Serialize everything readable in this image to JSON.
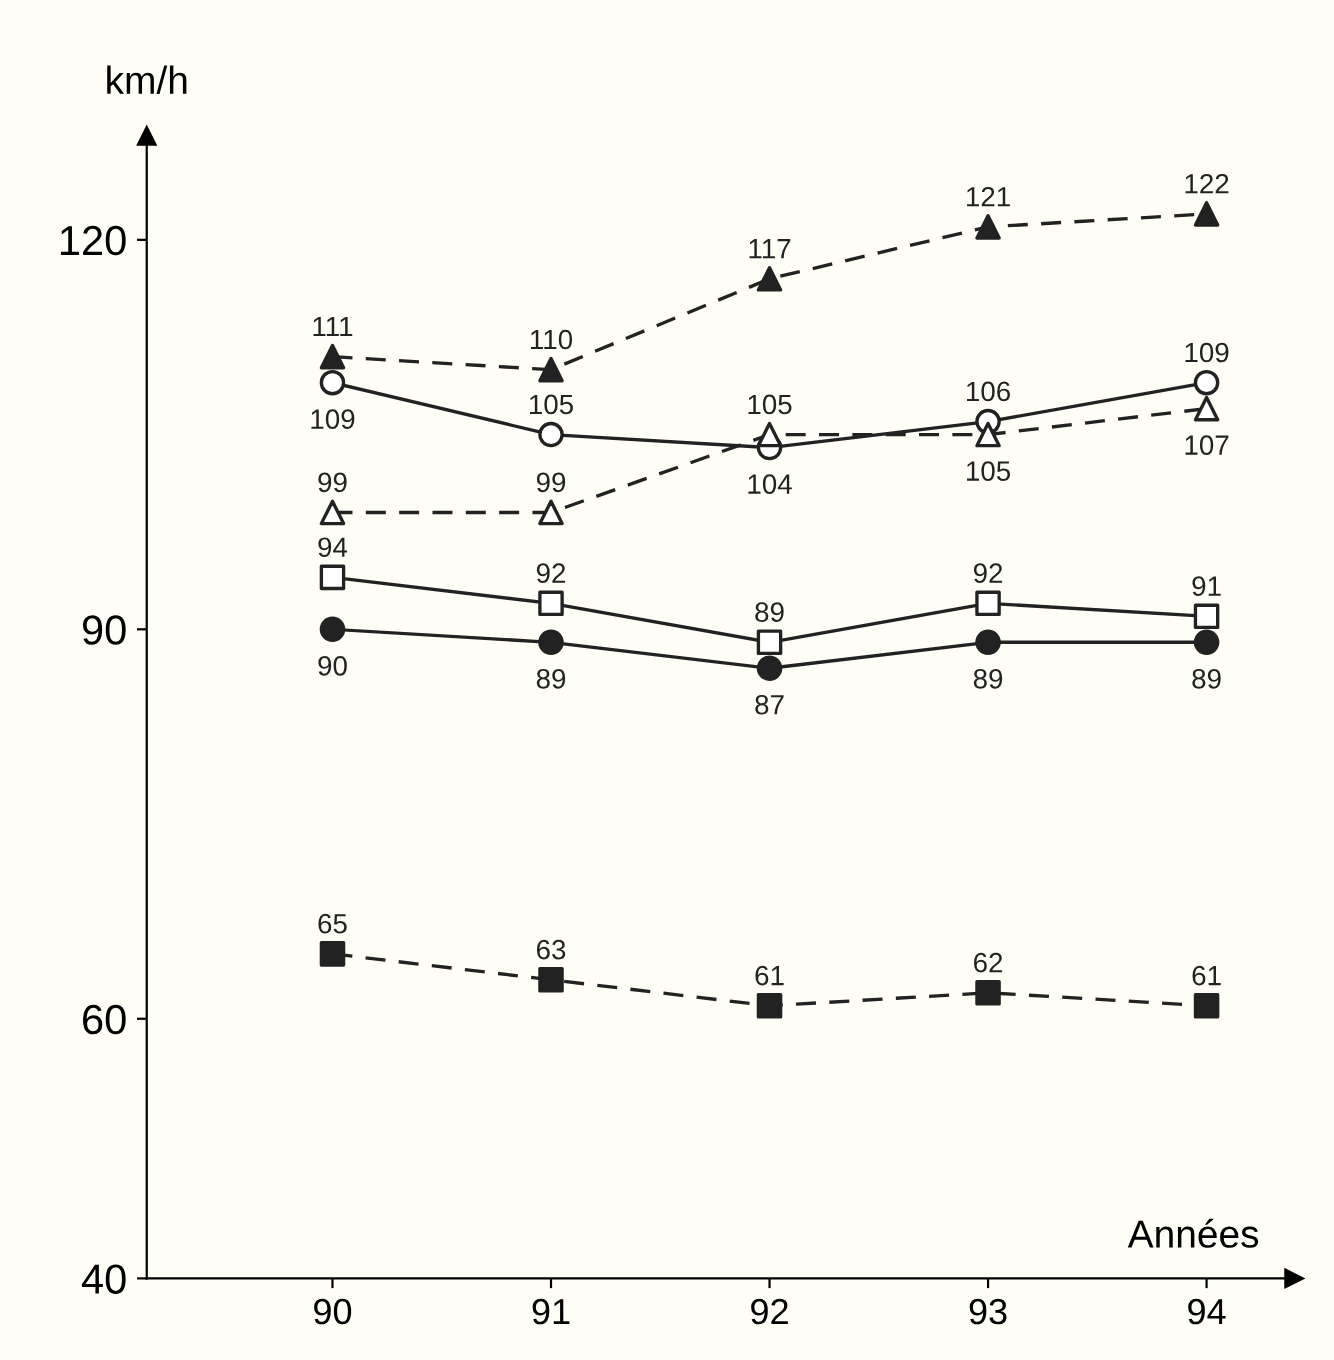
{
  "chart_data": {
    "type": "line",
    "ylabel": "km/h",
    "xlabel": "Années",
    "categories": [
      "90",
      "91",
      "92",
      "93",
      "94"
    ],
    "series": [
      {
        "color": "#222222",
        "marker": "triangle",
        "line_style": "dashed",
        "values": [
          111,
          110,
          117,
          121,
          122
        ]
      },
      {
        "color": "#222222",
        "colors": [
          "#ffffff",
          "#ffffff",
          "#ffffff",
          "#ffffff",
          "#ffffff"
        ],
        "marker": "circle",
        "line_style": "solid",
        "values": [
          109,
          105,
          104,
          106,
          109
        ]
      },
      {
        "color": "#222222",
        "colors": [
          "#ffffff",
          "#ffffff",
          "#ffffff",
          "#ffffff",
          "#ffffff"
        ],
        "marker": "triangle",
        "line_style": "dashed",
        "values": [
          99,
          99,
          105,
          105,
          107
        ]
      },
      {
        "color": "#222222",
        "colors": [
          "#ffffff",
          "#ffffff",
          "#ffffff",
          "#ffffff",
          "#ffffff"
        ],
        "marker": "square",
        "line_style": "solid",
        "values": [
          94,
          92,
          89,
          92,
          91
        ]
      },
      {
        "color": "#222222",
        "marker": "circle",
        "line_style": "solid",
        "values": [
          90,
          89,
          87,
          89,
          89
        ]
      },
      {
        "color": "#222222",
        "marker": "square",
        "line_style": "dashed",
        "values": [
          65,
          63,
          61,
          62,
          61
        ]
      }
    ],
    "ylim": [
      40,
      128
    ],
    "yticks": [
      40,
      60,
      90,
      120
    ],
    "data_labels": true,
    "grid": false,
    "legend": false
  }
}
